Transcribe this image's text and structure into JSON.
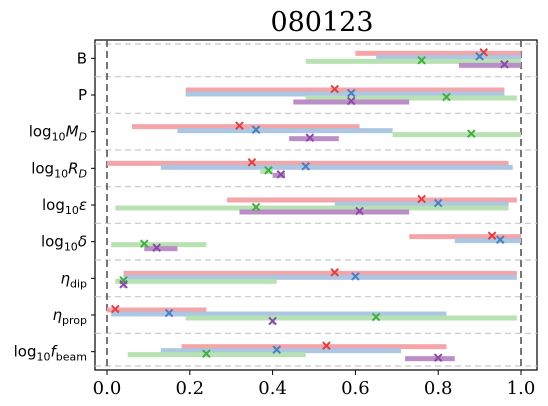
{
  "chart_data": {
    "type": "range-bar",
    "title": "080123",
    "xlim": [
      0.0,
      1.0
    ],
    "xticks": [
      "0.0",
      "0.2",
      "0.4",
      "0.6",
      "0.8",
      "1.0"
    ],
    "xtick_values": [
      0.0,
      0.2,
      0.4,
      0.6,
      0.8,
      1.0
    ],
    "vertical_reference_lines": [
      0.0,
      1.0
    ],
    "series_colors": {
      "red": "#e04040",
      "blue": "#4a80c0",
      "green": "#40b040",
      "purple": "#8a4aa8"
    },
    "bar_colors": {
      "red": "#f2a0a4",
      "blue": "#a8c4e2",
      "green": "#b4e0b0",
      "purple": "#b888c4"
    },
    "params": [
      {
        "label": "B",
        "bars": [
          {
            "series": "red",
            "lo": 0.6,
            "hi": 1.0,
            "best": 0.91
          },
          {
            "series": "blue",
            "lo": 0.65,
            "hi": 1.0,
            "best": 0.9
          },
          {
            "series": "green",
            "lo": 0.48,
            "hi": 1.0,
            "best": 0.76
          },
          {
            "series": "purple",
            "lo": 0.85,
            "hi": 1.0,
            "best": 0.96
          }
        ]
      },
      {
        "label": "P",
        "bars": [
          {
            "series": "red",
            "lo": 0.19,
            "hi": 0.96,
            "best": 0.55
          },
          {
            "series": "blue",
            "lo": 0.19,
            "hi": 0.96,
            "best": 0.59
          },
          {
            "series": "green",
            "lo": 0.48,
            "hi": 0.99,
            "best": 0.82
          },
          {
            "series": "purple",
            "lo": 0.45,
            "hi": 0.73,
            "best": 0.59
          }
        ]
      },
      {
        "label": "log10MD",
        "bars": [
          {
            "series": "red",
            "lo": 0.06,
            "hi": 0.61,
            "best": 0.32
          },
          {
            "series": "blue",
            "lo": 0.17,
            "hi": 0.69,
            "best": 0.36
          },
          {
            "series": "green",
            "lo": 0.69,
            "hi": 1.0,
            "best": 0.88
          },
          {
            "series": "purple",
            "lo": 0.44,
            "hi": 0.56,
            "best": 0.49
          }
        ]
      },
      {
        "label": "log10RD",
        "bars": [
          {
            "series": "red",
            "lo": 0.0,
            "hi": 0.97,
            "best": 0.35
          },
          {
            "series": "blue",
            "lo": 0.13,
            "hi": 0.98,
            "best": 0.48
          },
          {
            "series": "green",
            "lo": 0.37,
            "hi": 0.4,
            "best": 0.39
          },
          {
            "series": "purple",
            "lo": 0.4,
            "hi": 0.43,
            "best": 0.42
          }
        ]
      },
      {
        "label": "log10ε",
        "bars": [
          {
            "series": "red",
            "lo": 0.29,
            "hi": 0.99,
            "best": 0.76
          },
          {
            "series": "blue",
            "lo": 0.55,
            "hi": 0.97,
            "best": 0.8
          },
          {
            "series": "green",
            "lo": 0.02,
            "hi": 0.97,
            "best": 0.36
          },
          {
            "series": "purple",
            "lo": 0.32,
            "hi": 0.73,
            "best": 0.61
          }
        ]
      },
      {
        "label": "log10δ",
        "bars": [
          {
            "series": "red",
            "lo": 0.73,
            "hi": 1.0,
            "best": 0.93
          },
          {
            "series": "blue",
            "lo": 0.84,
            "hi": 1.0,
            "best": 0.95
          },
          {
            "series": "green",
            "lo": 0.01,
            "hi": 0.24,
            "best": 0.09
          },
          {
            "series": "purple",
            "lo": 0.09,
            "hi": 0.17,
            "best": 0.12
          }
        ]
      },
      {
        "label": "ηdip",
        "bars": [
          {
            "series": "red",
            "lo": 0.04,
            "hi": 0.99,
            "best": 0.55
          },
          {
            "series": "blue",
            "lo": 0.04,
            "hi": 0.99,
            "best": 0.6
          },
          {
            "series": "green",
            "lo": 0.02,
            "hi": 0.41,
            "best": 0.04
          },
          {
            "series": "purple",
            "lo": 0.04,
            "hi": 0.04,
            "best": 0.04
          }
        ]
      },
      {
        "label": "ηprop",
        "bars": [
          {
            "series": "red",
            "lo": 0.0,
            "hi": 0.24,
            "best": 0.02
          },
          {
            "series": "blue",
            "lo": 0.01,
            "hi": 0.82,
            "best": 0.15
          },
          {
            "series": "green",
            "lo": 0.19,
            "hi": 0.99,
            "best": 0.65
          },
          {
            "series": "purple",
            "lo": 0.4,
            "hi": 0.4,
            "best": 0.4
          }
        ]
      },
      {
        "label": "log10fbeam",
        "bars": [
          {
            "series": "red",
            "lo": 0.18,
            "hi": 0.82,
            "best": 0.53
          },
          {
            "series": "blue",
            "lo": 0.13,
            "hi": 0.71,
            "best": 0.41
          },
          {
            "series": "green",
            "lo": 0.05,
            "hi": 0.48,
            "best": 0.24
          },
          {
            "series": "purple",
            "lo": 0.72,
            "hi": 0.84,
            "best": 0.8
          }
        ]
      }
    ]
  }
}
